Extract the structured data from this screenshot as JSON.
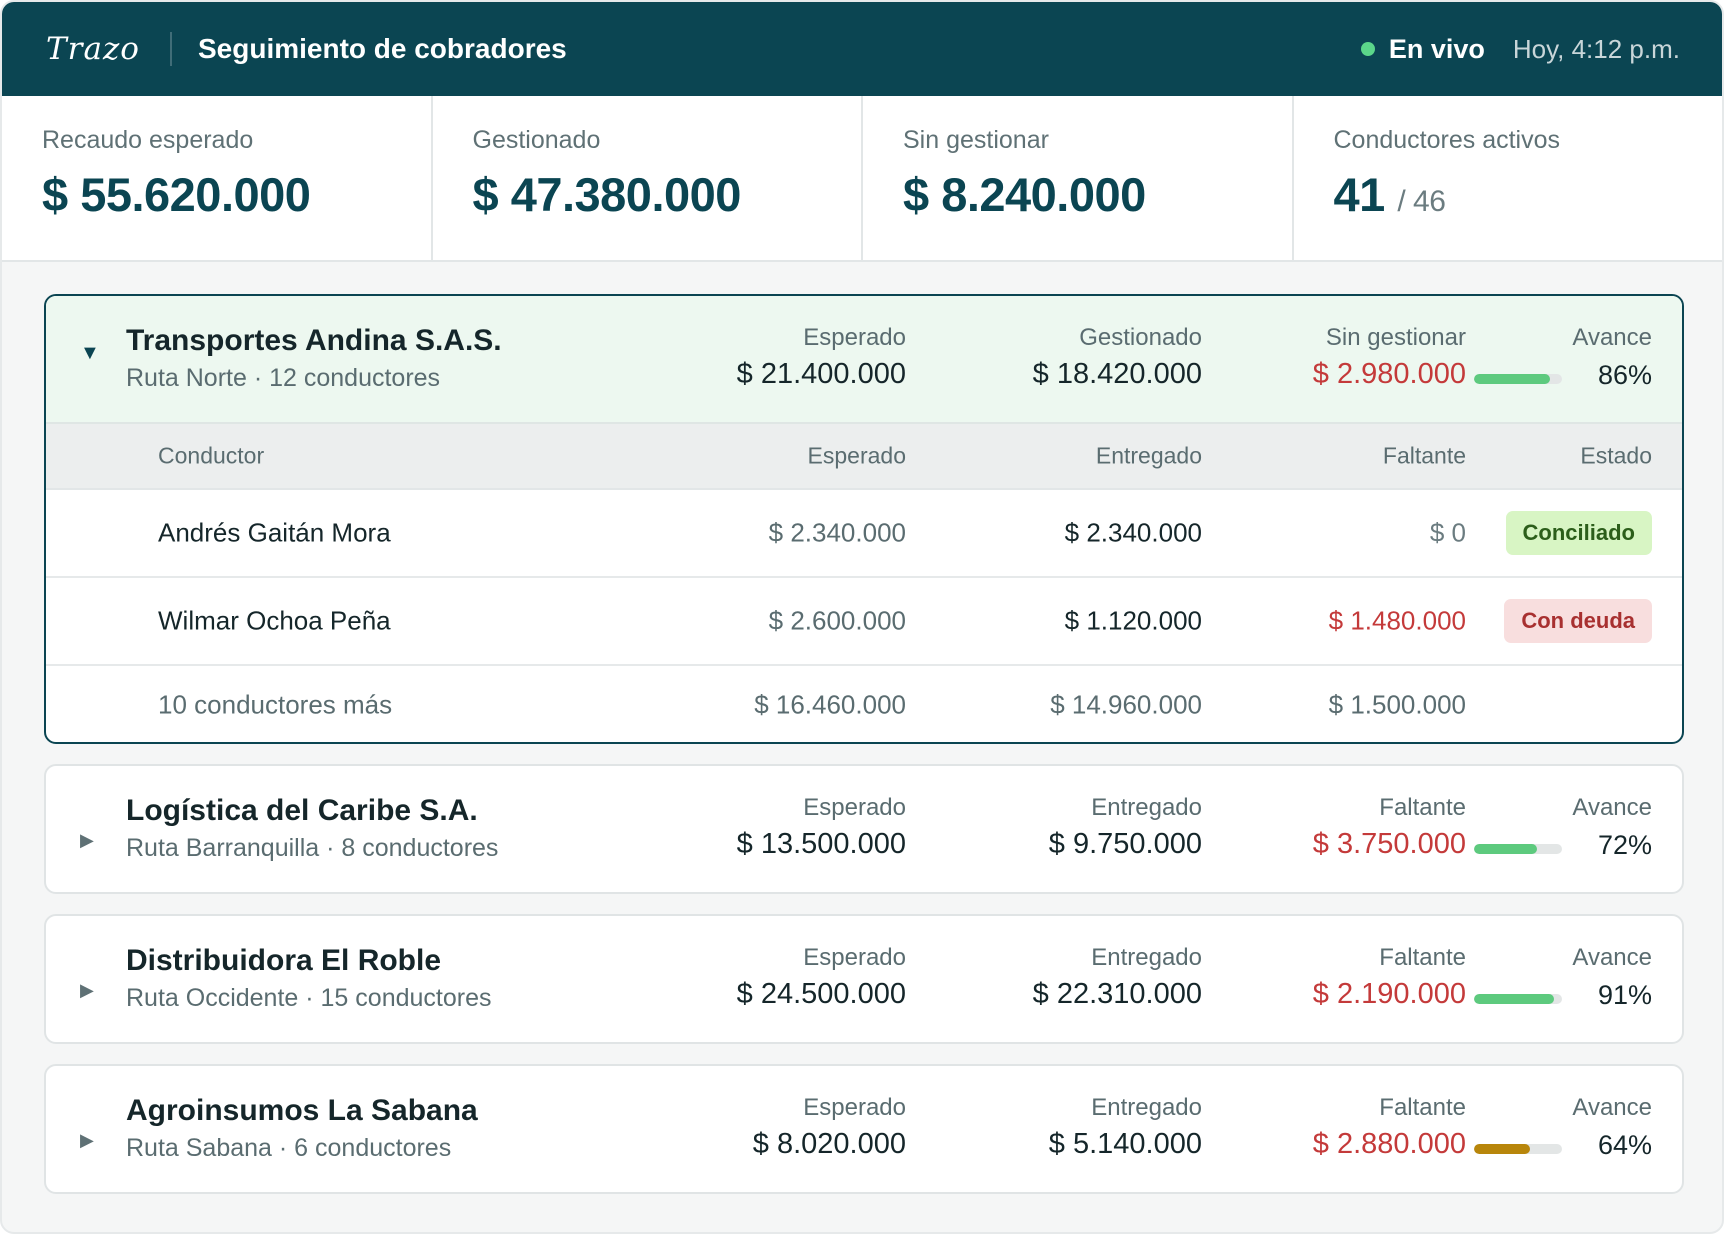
{
  "header": {
    "logo": "Trazo",
    "title": "Seguimiento de cobradores",
    "live_label": "En vivo",
    "time": "Hoy, 4:12 p.m."
  },
  "kpis": [
    {
      "label": "Recaudo esperado",
      "value": "$ 55.620.000"
    },
    {
      "label": "Gestionado",
      "value": "$ 47.380.000"
    },
    {
      "label": "Sin gestionar",
      "value": "$ 8.240.000"
    },
    {
      "label": "Conductores activos",
      "value": "41",
      "total": "/ 46"
    }
  ],
  "companies": [
    {
      "name": "Transportes Andina S.A.S.",
      "sub": "Ruta Norte · 12 conductores",
      "expanded": true,
      "m1_label": "Esperado",
      "m1_value": "$ 21.400.000",
      "m2_label": "Gestionado",
      "m2_value": "$ 18.420.000",
      "m3_label": "Sin gestionar",
      "m3_value": "$ 2.980.000",
      "avance_label": "Avance",
      "avance": "86%",
      "progress": 0.86,
      "table": {
        "headers": {
          "name": "Conductor",
          "esp": "Esperado",
          "ent": "Entregado",
          "fal": "Faltante",
          "est": "Estado"
        },
        "rows": [
          {
            "name": "Andrés Gaitán Mora",
            "esp": "$ 2.340.000",
            "ent": "$ 2.340.000",
            "fal": "$ 0",
            "status": "Conciliado"
          },
          {
            "name": "Wilmar Ochoa Peña",
            "esp": "$ 2.600.000",
            "ent": "$ 1.120.000",
            "fal": "$ 1.480.000",
            "status": "Con deuda"
          }
        ],
        "more": {
          "name": "10 conductores más",
          "esp": "$ 16.460.000",
          "ent": "$ 14.960.000",
          "fal": "$ 1.500.000"
        }
      }
    },
    {
      "name": "Logística del Caribe S.A.",
      "sub": "Ruta Barranquilla · 8 conductores",
      "m1_label": "Esperado",
      "m1_value": "$ 13.500.000",
      "m2_label": "Entregado",
      "m2_value": "$ 9.750.000",
      "m3_label": "Faltante",
      "m3_value": "$ 3.750.000",
      "avance_label": "Avance",
      "avance": "72%",
      "progress": 0.72
    },
    {
      "name": "Distribuidora El Roble",
      "sub": "Ruta Occidente · 15 conductores",
      "m1_label": "Esperado",
      "m1_value": "$ 24.500.000",
      "m2_label": "Entregado",
      "m2_value": "$ 22.310.000",
      "m3_label": "Faltante",
      "m3_value": "$ 2.190.000",
      "avance_label": "Avance",
      "avance": "91%",
      "progress": 0.91
    },
    {
      "name": "Agroinsumos La Sabana",
      "sub": "Ruta Sabana · 6 conductores",
      "m1_label": "Esperado",
      "m1_value": "$ 8.020.000",
      "m2_label": "Entregado",
      "m2_value": "$ 5.140.000",
      "m3_label": "Faltante",
      "m3_value": "$ 2.880.000",
      "avance_label": "Avance",
      "avance": "64%",
      "progress": 0.64,
      "progress_color": "#b8860b"
    }
  ],
  "colors": {
    "brand": "#0b4552",
    "live": "#5bd68a",
    "progress_ok": "#5dca7e",
    "progress_warn": "#b8860b",
    "negative": "#c43a3a",
    "badge_ok": "#d8f5c4",
    "badge_debt": "#f8dede"
  },
  "icons": {
    "expanded": "chevron-down-icon",
    "collapsed": "chevron-right-icon",
    "live": "live-dot-icon"
  }
}
